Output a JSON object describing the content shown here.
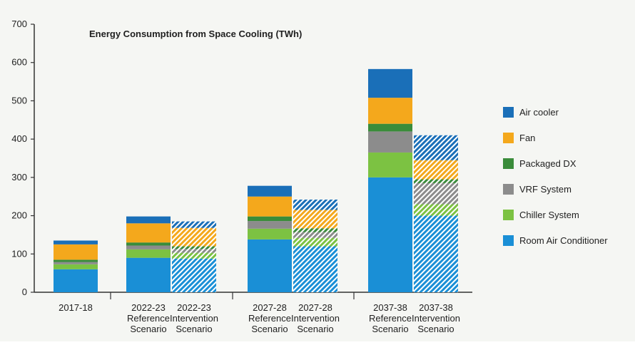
{
  "chart_data": {
    "type": "bar",
    "stacked": true,
    "title": "Energy Consumption from Space Cooling (TWh)",
    "xlabel": "",
    "ylabel": "",
    "ylim": [
      0,
      700
    ],
    "yticks": [
      0,
      100,
      200,
      300,
      400,
      500,
      600,
      700
    ],
    "categories": [
      [
        "2017-18"
      ],
      [
        "2022-23",
        "Reference",
        "Scenario"
      ],
      [
        "2022-23",
        "Intervention",
        "Scenario"
      ],
      [
        "2027-28",
        "Reference",
        "Scenario"
      ],
      [
        "2027-28",
        "Intervention",
        "Scenario"
      ],
      [
        "2037-38",
        "Reference",
        "Scenario"
      ],
      [
        "2037-38",
        "Intervention",
        "Scenario"
      ]
    ],
    "hatched": [
      false,
      false,
      true,
      false,
      true,
      false,
      true
    ],
    "series": [
      {
        "name": "Room Air Conditioner",
        "color": "#1a8fd6",
        "values": [
          60,
          90,
          88,
          138,
          120,
          300,
          200
        ]
      },
      {
        "name": "Chiller System",
        "color": "#7cc242",
        "values": [
          13,
          22,
          15,
          28,
          22,
          65,
          30
        ]
      },
      {
        "name": "VRF System",
        "color": "#8c8c8c",
        "values": [
          6,
          10,
          10,
          20,
          15,
          55,
          55
        ]
      },
      {
        "name": "Packaged DX",
        "color": "#3a8c3a",
        "values": [
          6,
          8,
          7,
          12,
          10,
          20,
          10
        ]
      },
      {
        "name": "Fan",
        "color": "#f4a81c",
        "values": [
          40,
          50,
          48,
          52,
          48,
          68,
          50
        ]
      },
      {
        "name": "Air cooler",
        "color": "#1a6fb8",
        "values": [
          10,
          18,
          17,
          28,
          27,
          75,
          65
        ]
      }
    ],
    "legend": {
      "position": "right",
      "order": [
        "Air cooler",
        "Fan",
        "Packaged DX",
        "VRF System",
        "Chiller System",
        "Room Air Conditioner"
      ]
    },
    "grid": false
  }
}
